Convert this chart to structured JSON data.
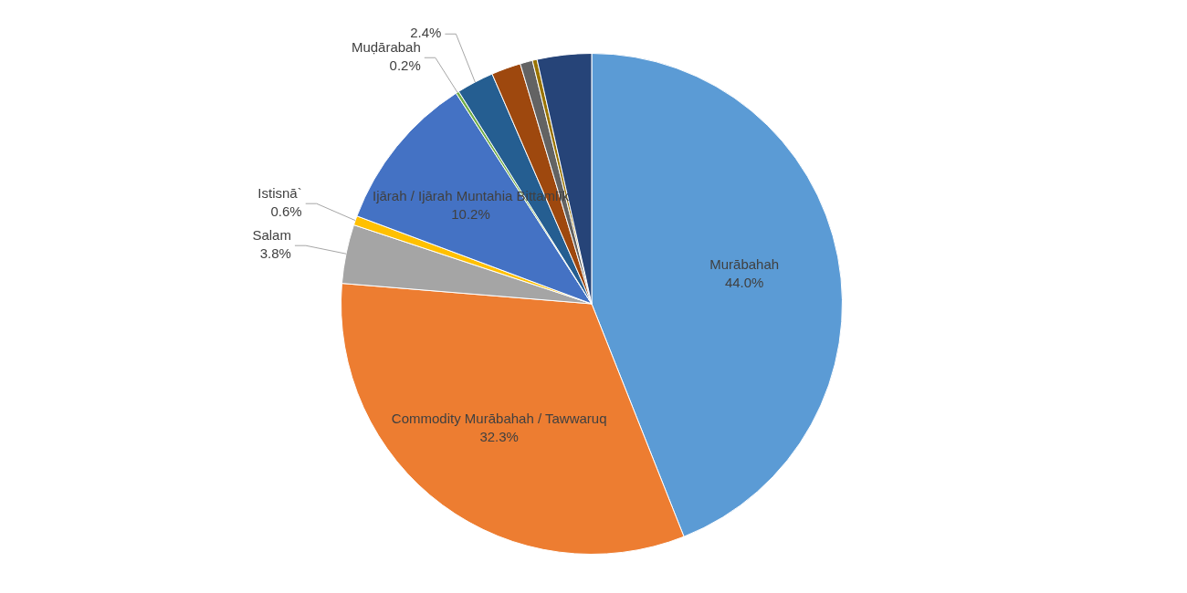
{
  "chart_data": {
    "type": "pie",
    "categories": [
      "Murābahah",
      "Commodity Murābahah / Tawwaruq",
      "Salam",
      "Istisnā`",
      "Ijārah / Ijārah Muntahia Bittamlīk",
      "Muḍārabah",
      null,
      null,
      null,
      null,
      null
    ],
    "values": [
      44.0,
      32.3,
      3.8,
      0.6,
      10.2,
      0.2,
      2.4,
      1.9,
      0.8,
      0.3,
      3.5
    ],
    "value_labels": [
      "44.0%",
      "32.3%",
      "3.8%",
      "0.6%",
      "10.2%",
      "0.2%",
      "2.4%",
      null,
      null,
      null,
      null
    ],
    "colors": [
      "#5b9bd5",
      "#ed7d31",
      "#a5a5a5",
      "#ffc000",
      "#4472c4",
      "#70ad47",
      "#255e91",
      "#9e480e",
      "#636363",
      "#997300",
      "#264478"
    ],
    "legend": false
  }
}
